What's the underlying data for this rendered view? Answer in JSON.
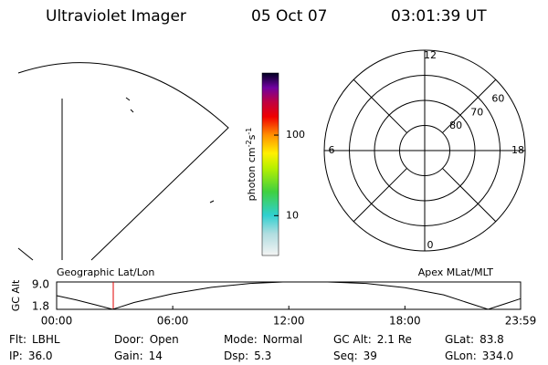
{
  "header": {
    "title": "Ultraviolet Imager",
    "date": "05 Oct 07",
    "time": "03:01:39 UT"
  },
  "colorbar": {
    "label": {
      "base": "photon cm",
      "exp1": "-2",
      "mid": "s",
      "exp2": "-1"
    },
    "log": true,
    "lim": [
      3.2,
      590
    ],
    "ticks": [
      10,
      100
    ]
  },
  "polar": {
    "rlim": [
      90,
      50
    ],
    "lat_rings": [
      80,
      70,
      60
    ],
    "mlt_ticks": [
      12,
      18,
      6,
      0
    ]
  },
  "chart_data": {
    "type": "line",
    "ylabel": "GC Alt",
    "left_label": "Geographic Lat/Lon",
    "right_label": "Apex MLat/MLT",
    "x": [
      0,
      1,
      2,
      2.9,
      4,
      6,
      8,
      10,
      11.7,
      14,
      16,
      18,
      20,
      22.3,
      23.2,
      23.98
    ],
    "values": [
      5.4,
      4.3,
      3.0,
      1.8,
      3.6,
      5.9,
      7.6,
      8.6,
      9.0,
      9.0,
      8.6,
      7.5,
      5.6,
      1.8,
      3.3,
      4.6
    ],
    "color": "#000000",
    "xlim": [
      0,
      23.98
    ],
    "xticks": [
      {
        "value": 0,
        "label": "00:00"
      },
      {
        "value": 6,
        "label": "06:00"
      },
      {
        "value": 12,
        "label": "12:00"
      },
      {
        "value": 18,
        "label": "18:00"
      },
      {
        "value": 23.98,
        "label": "23:59"
      }
    ],
    "ylim": [
      1.8,
      9.0
    ],
    "yticks": [
      {
        "value": 9.0,
        "label": "9.0"
      },
      {
        "value": 1.8,
        "label": "1.8"
      }
    ]
  },
  "footer": [
    [
      {
        "label": "Flt:",
        "value": "LBHL"
      },
      {
        "label": "Door:",
        "value": "Open"
      },
      {
        "label": "Mode:",
        "value": "Normal"
      },
      {
        "label": "GC Alt:",
        "value": "2.1 Re"
      },
      {
        "label": "GLat:",
        "value": "83.8"
      }
    ],
    [
      {
        "label": "IP:",
        "value": "36.0"
      },
      {
        "label": "Gain:",
        "value": "14"
      },
      {
        "label": "Dsp:",
        "value": "5.3"
      },
      {
        "label": "Seq:",
        "value": "39"
      },
      {
        "label": "GLon:",
        "value": "334.0"
      }
    ]
  ]
}
